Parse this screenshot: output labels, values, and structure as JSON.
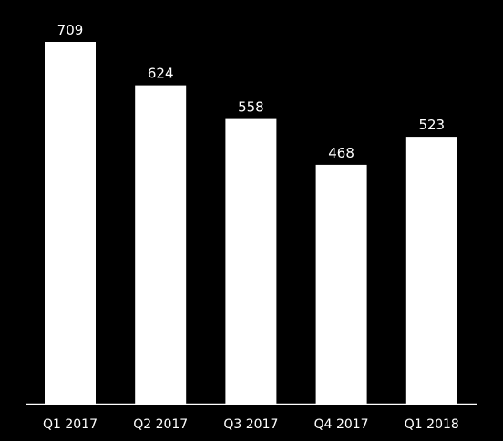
{
  "chart_data": {
    "type": "bar",
    "title": "",
    "xlabel": "",
    "ylabel": "",
    "categories": [
      "Q1 2017",
      "Q2 2017",
      "Q3 2017",
      "Q4 2017",
      "Q1 2018"
    ],
    "values": [
      709,
      624,
      558,
      468,
      523
    ],
    "ylim": [
      0,
      709
    ],
    "grid": false,
    "legend": "none",
    "colors": {
      "background": "#000000",
      "bar": "#ffffff",
      "text": "#ffffff",
      "axis": "#ffffff"
    }
  }
}
